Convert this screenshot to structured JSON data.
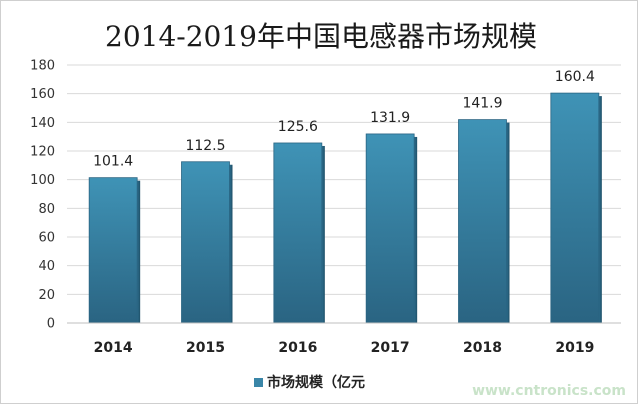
{
  "chart_data": {
    "type": "bar",
    "title": "2014-2019年中国电感器市场规模",
    "categories": [
      "2014",
      "2015",
      "2016",
      "2017",
      "2018",
      "2019"
    ],
    "series": [
      {
        "name": "市场规模（亿元",
        "values": [
          101.4,
          112.5,
          125.6,
          131.9,
          141.9,
          160.4
        ]
      }
    ],
    "data_labels": [
      "101.4",
      "112.5",
      "125.6",
      "131.9",
      "141.9",
      "160.4"
    ],
    "ylim": [
      0,
      180
    ],
    "yticks": [
      0,
      20,
      40,
      60,
      80,
      100,
      120,
      140,
      160,
      180
    ],
    "grid": true,
    "legend_position": "bottom",
    "bar_color": "#3a86a8"
  },
  "watermark": "www.cntronics.com"
}
